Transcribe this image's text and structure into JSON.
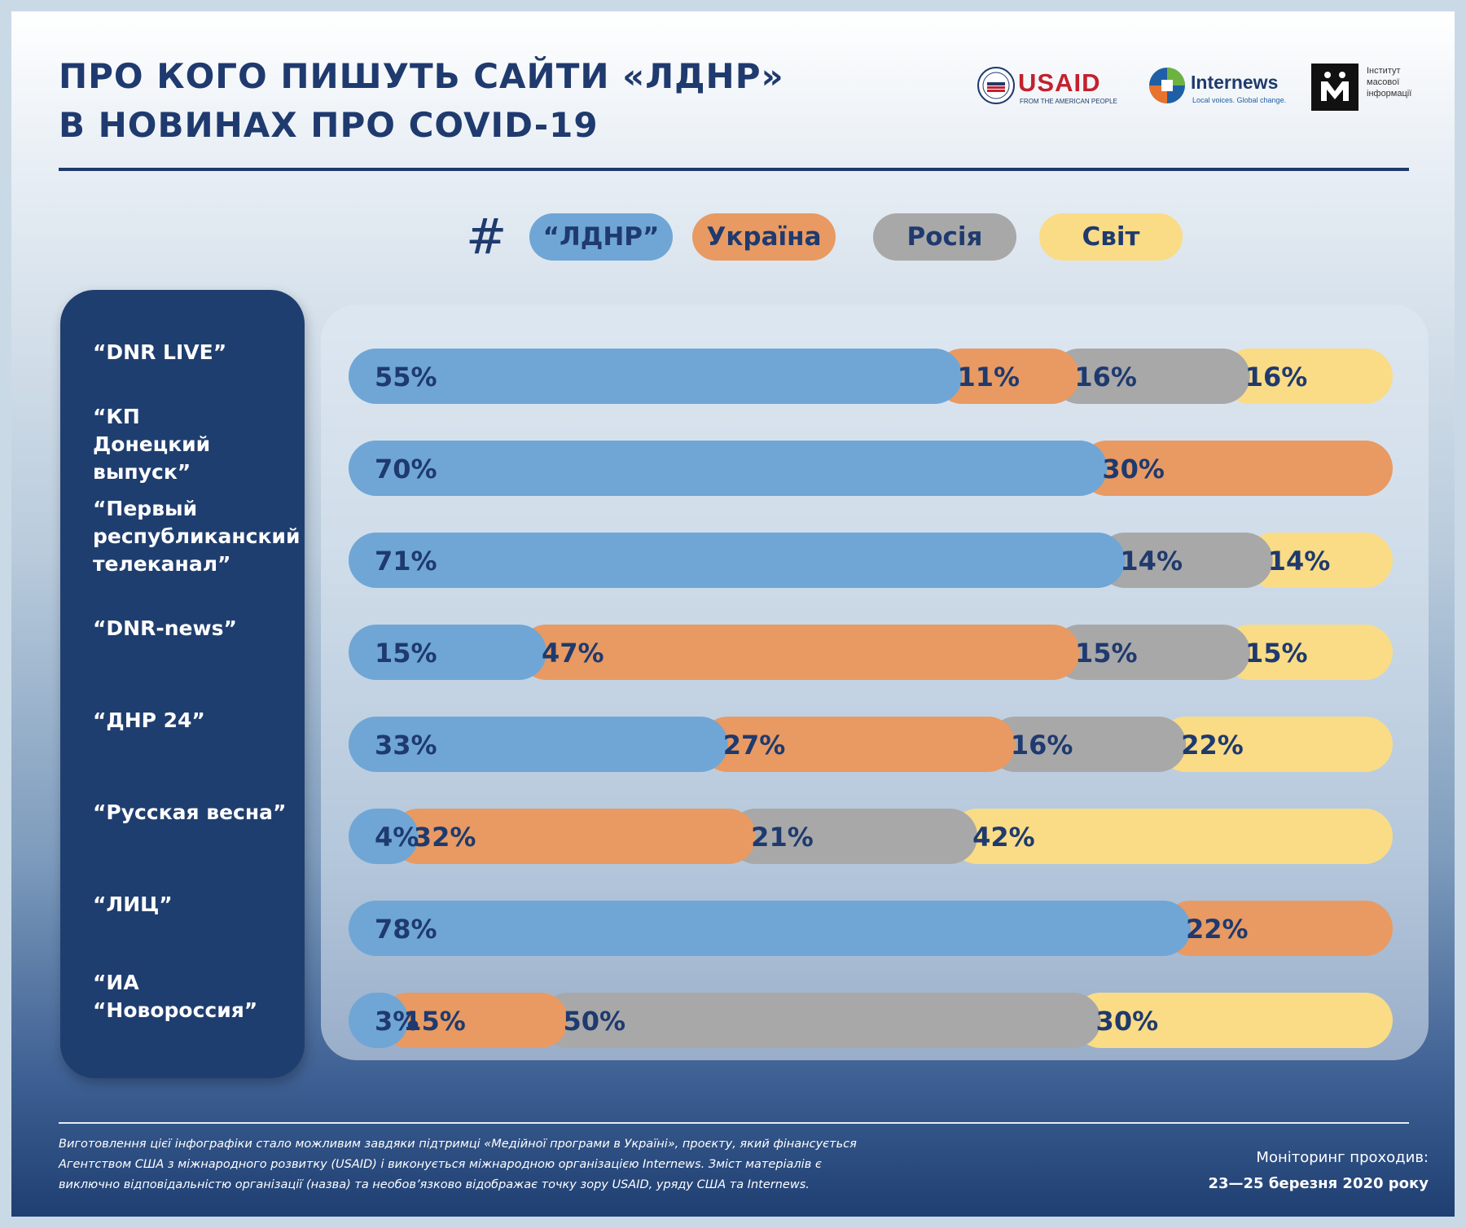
{
  "header": {
    "title_line1": "ПРО КОГО ПИШУТЬ САЙТИ «ЛДНР»",
    "title_line2": "В НОВИНАХ ПРО COVID-19"
  },
  "logos": {
    "usaid": {
      "name": "USAID",
      "tagline": "FROM THE AMERICAN PEOPLE",
      "icon": "usaid-seal-icon"
    },
    "internews": {
      "name": "Internews",
      "tagline": "Local voices. Global change.",
      "icon": "internews-globe-icon"
    },
    "imi": {
      "line1": "Інститут",
      "line2": "масової",
      "line3": "інформації",
      "icon": "imi-m-icon"
    }
  },
  "legend": {
    "hash": "#",
    "items": [
      {
        "label": "“ЛДНР”",
        "color": "#6fa6d6"
      },
      {
        "label": "Україна",
        "color": "#e89a62"
      },
      {
        "label": "Росія",
        "color": "#a8a8a8"
      },
      {
        "label": "Світ",
        "color": "#fadc86"
      }
    ]
  },
  "chart_data": {
    "type": "bar",
    "stacked": true,
    "orientation": "horizontal",
    "unit": "%",
    "categories": [
      "“DNR LIVE”",
      "“КП\nДонецкий выпуск”",
      "“Первый\nреспубликанский\nтелеканал”",
      "“DNR-news”",
      "“ДНР 24”",
      "“Русская весна”",
      "“ЛИЦ”",
      "“ИА\n“Новороссия”"
    ],
    "series": [
      {
        "name": "“ЛДНР”",
        "color": "#6fa6d6",
        "values": [
          55,
          70,
          71,
          15,
          33,
          4,
          78,
          3
        ]
      },
      {
        "name": "Україна",
        "color": "#e89a62",
        "values": [
          11,
          30,
          0,
          47,
          27,
          32,
          22,
          15
        ]
      },
      {
        "name": "Росія",
        "color": "#a8a8a8",
        "values": [
          16,
          0,
          14,
          15,
          16,
          21,
          0,
          50
        ]
      },
      {
        "name": "Світ",
        "color": "#fadc86",
        "values": [
          16,
          0,
          14,
          15,
          22,
          42,
          0,
          30
        ]
      }
    ],
    "label_colors": [
      "#6fa6d6",
      "#e89a62",
      "#a8a8a8",
      "#a8a8a8",
      "#fadc86"
    ]
  },
  "footer": {
    "note_line1": "Виготовлення цієї інфографіки стало можливим завдяки підтримці «Медійної програми в Україні», проєкту, який фінансується",
    "note_line2": "Агентством США з міжнародного розвитку (USAID) і виконується міжнародною організацією Internews. Зміст матеріалів є",
    "note_line3": "виключно відповідальністю організації (назва) та необов’язково відображає точку зору USAID, уряду США та Internews.",
    "monitoring_label": "Моніторинг проходив:",
    "monitoring_dates": "23—25 березня 2020 року"
  }
}
